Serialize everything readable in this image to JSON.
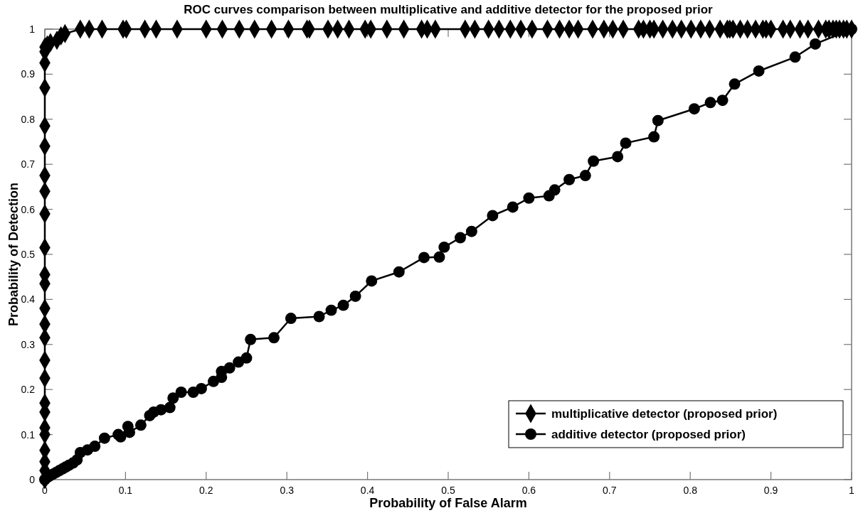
{
  "chart_data": {
    "type": "line",
    "title": "ROC curves comparison between multiplicative and additive detector for the proposed prior",
    "xlabel": "Probability of False Alarm",
    "ylabel": "Probability of Detection",
    "xlim": [
      0,
      1
    ],
    "ylim": [
      0,
      1
    ],
    "xticks": [
      0,
      0.1,
      0.2,
      0.3,
      0.4,
      0.5,
      0.6,
      0.7,
      0.8,
      0.9,
      1
    ],
    "yticks": [
      0,
      0.1,
      0.2,
      0.3,
      0.4,
      0.5,
      0.6,
      0.7,
      0.8,
      0.9,
      1
    ],
    "grid": false,
    "legend": "bottom right",
    "line_style": "solid",
    "series": [
      {
        "name": "multiplicative detector (proposed prior)",
        "color": "#000000",
        "marker": "diamond",
        "x": [
          0,
          0,
          0,
          0,
          0,
          0,
          0,
          0,
          0,
          0,
          0,
          0,
          0,
          0,
          0,
          0,
          0,
          0,
          0,
          0,
          0,
          0,
          0,
          0,
          0,
          0.003,
          0.007,
          0.015,
          0.02,
          0.025,
          0.044,
          0.055,
          0.071,
          0.097,
          0.101,
          0.124,
          0.138,
          0.164,
          0.2,
          0.22,
          0.241,
          0.26,
          0.281,
          0.302,
          0.325,
          0.328,
          0.351,
          0.363,
          0.377,
          0.397,
          0.404,
          0.424,
          0.445,
          0.467,
          0.474,
          0.484,
          0.521,
          0.533,
          0.55,
          0.563,
          0.577,
          0.59,
          0.604,
          0.623,
          0.638,
          0.65,
          0.661,
          0.679,
          0.693,
          0.704,
          0.717,
          0.736,
          0.742,
          0.75,
          0.755,
          0.766,
          0.778,
          0.789,
          0.801,
          0.813,
          0.824,
          0.837,
          0.846,
          0.849,
          0.853,
          0.862,
          0.871,
          0.881,
          0.89,
          0.894,
          0.9,
          0.915,
          0.924,
          0.936,
          0.946,
          0.959,
          0.968,
          0.972,
          0.977,
          0.981,
          0.985,
          0.99,
          0.994,
          1
        ],
        "values": [
          0,
          0.02,
          0.04,
          0.065,
          0.1,
          0.115,
          0.15,
          0.17,
          0.225,
          0.265,
          0.315,
          0.345,
          0.38,
          0.435,
          0.455,
          0.515,
          0.59,
          0.64,
          0.675,
          0.74,
          0.785,
          0.87,
          0.925,
          0.95,
          0.96,
          0.965,
          0.97,
          0.975,
          0.985,
          0.99,
          1,
          1,
          1,
          1,
          1,
          1,
          1,
          1,
          1,
          1,
          1,
          1,
          1,
          1,
          1,
          1,
          1,
          1,
          1,
          1,
          1,
          1,
          1,
          1,
          1,
          1,
          1,
          1,
          1,
          1,
          1,
          1,
          1,
          1,
          1,
          1,
          1,
          1,
          1,
          1,
          1,
          1,
          1,
          1,
          1,
          1,
          1,
          1,
          1,
          1,
          1,
          1,
          1,
          1,
          1,
          1,
          1,
          1,
          1,
          1,
          1,
          1,
          1,
          1,
          1,
          1,
          1,
          1,
          1,
          1,
          1,
          1,
          1,
          1
        ]
      },
      {
        "name": "additive detector (proposed prior)",
        "color": "#000000",
        "marker": "circle",
        "x": [
          0,
          0.003,
          0.006,
          0.01,
          0.014,
          0.018,
          0.022,
          0.026,
          0.03,
          0.035,
          0.04,
          0.044,
          0.053,
          0.062,
          0.074,
          0.091,
          0.094,
          0.103,
          0.105,
          0.119,
          0.13,
          0.135,
          0.144,
          0.155,
          0.159,
          0.169,
          0.184,
          0.194,
          0.209,
          0.219,
          0.219,
          0.229,
          0.24,
          0.25,
          0.255,
          0.284,
          0.305,
          0.34,
          0.355,
          0.37,
          0.385,
          0.405,
          0.439,
          0.47,
          0.489,
          0.495,
          0.515,
          0.529,
          0.555,
          0.58,
          0.6,
          0.625,
          0.632,
          0.65,
          0.67,
          0.68,
          0.71,
          0.72,
          0.755,
          0.76,
          0.805,
          0.825,
          0.84,
          0.855,
          0.885,
          0.93,
          0.955,
          1
        ],
        "values": [
          0,
          0.005,
          0.008,
          0.012,
          0.016,
          0.02,
          0.024,
          0.028,
          0.032,
          0.037,
          0.044,
          0.06,
          0.066,
          0.074,
          0.092,
          0.1,
          0.095,
          0.118,
          0.105,
          0.121,
          0.142,
          0.15,
          0.155,
          0.16,
          0.181,
          0.194,
          0.194,
          0.202,
          0.218,
          0.227,
          0.24,
          0.248,
          0.261,
          0.27,
          0.311,
          0.315,
          0.358,
          0.362,
          0.376,
          0.387,
          0.407,
          0.441,
          0.461,
          0.493,
          0.494,
          0.516,
          0.537,
          0.551,
          0.586,
          0.605,
          0.625,
          0.63,
          0.643,
          0.666,
          0.675,
          0.707,
          0.717,
          0.747,
          0.761,
          0.797,
          0.823,
          0.837,
          0.842,
          0.878,
          0.907,
          0.938,
          0.967,
          1
        ]
      }
    ]
  }
}
